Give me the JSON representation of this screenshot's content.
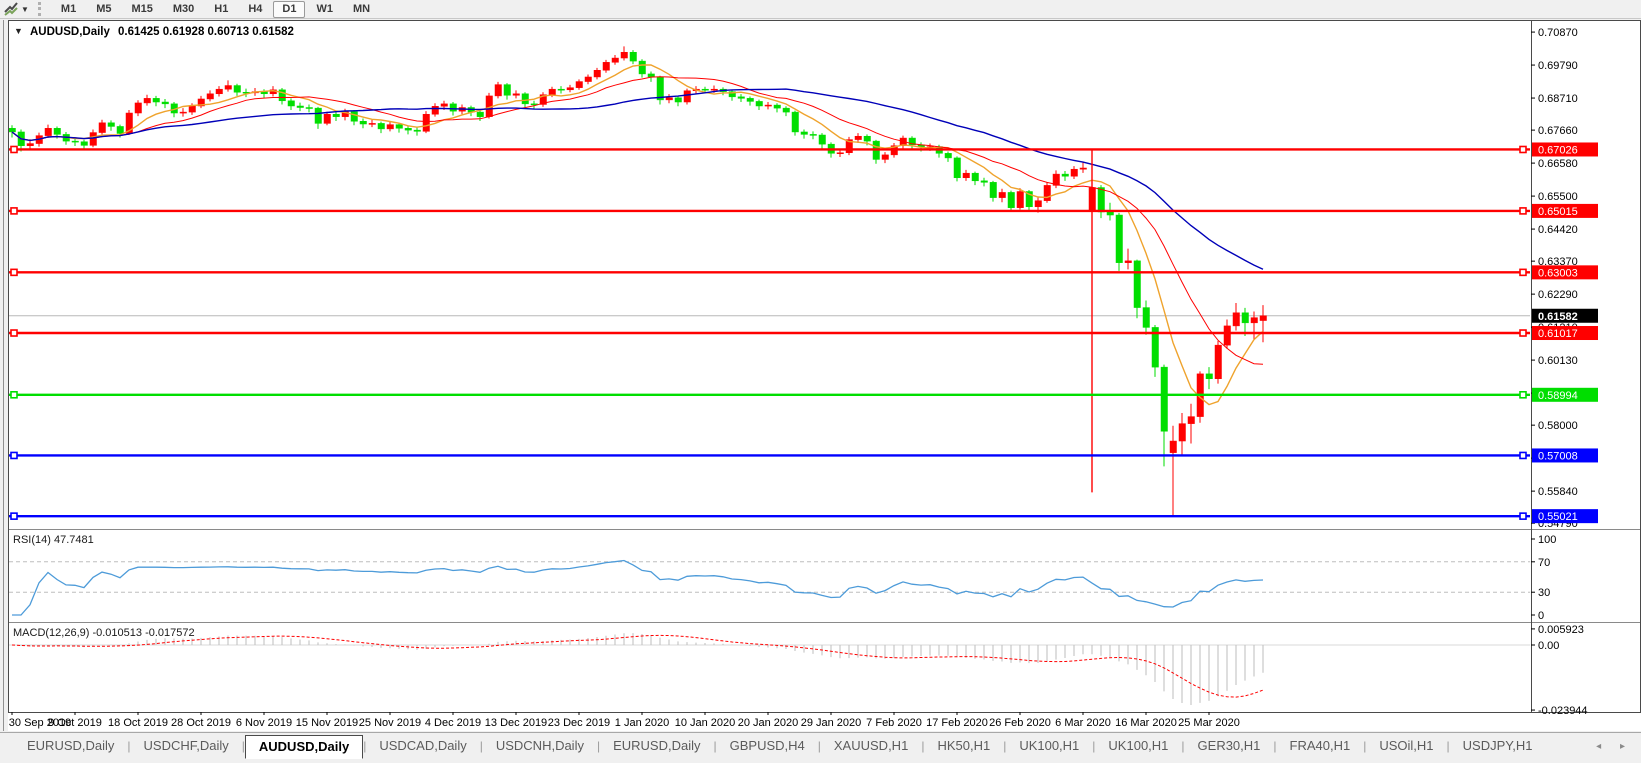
{
  "toolbar": {
    "chart_icon": "charts-toolbar-icon",
    "timeframes": [
      "M1",
      "M5",
      "M15",
      "M30",
      "H1",
      "H4",
      "D1",
      "W1",
      "MN"
    ],
    "active_timeframe": "D1"
  },
  "window_title": {
    "symbol_label": "AUDUSD,Daily",
    "ohlc_label": "0.61425 0.61928 0.60713 0.61582"
  },
  "tabs": {
    "items": [
      "EURUSD,Daily",
      "USDCHF,Daily",
      "AUDUSD,Daily",
      "USDCAD,Daily",
      "USDCNH,Daily",
      "EURUSD,Daily",
      "GBPUSD,H4",
      "XAUUSD,H1",
      "HK50,H1",
      "UK100,H1",
      "UK100,H1",
      "GER30,H1",
      "FRA40,H1",
      "USOil,H1",
      "USDJPY,H1"
    ],
    "active_index": 2,
    "left_arrow": "◂",
    "right_arrow": "▸"
  },
  "chart_data": {
    "type": "candlestick",
    "symbol": "AUDUSD",
    "timeframe": "Daily",
    "current_bar": {
      "open": 0.61425,
      "high": 0.61928,
      "low": 0.60713,
      "close": 0.61582
    },
    "current_price": 0.61582,
    "current_price_label": "0.61582",
    "price_range": {
      "top": 0.712,
      "bottom": 0.546
    },
    "y_ticks": [
      "0.70870",
      "0.69790",
      "0.68710",
      "0.67660",
      "0.66580",
      "0.65500",
      "0.64420",
      "0.63370",
      "0.62290",
      "0.61210",
      "0.60130",
      "0.59050",
      "0.58000",
      "0.56920",
      "0.55840",
      "0.54790"
    ],
    "x_labels": [
      "30 Sep 2019",
      "9 Oct 2019",
      "18 Oct 2019",
      "28 Oct 2019",
      "6 Nov 2019",
      "15 Nov 2019",
      "25 Nov 2019",
      "4 Dec 2019",
      "13 Dec 2019",
      "23 Dec 2019",
      "1 Jan 2020",
      "10 Jan 2020",
      "20 Jan 2020",
      "29 Jan 2020",
      "7 Feb 2020",
      "17 Feb 2020",
      "26 Feb 2020",
      "6 Mar 2020",
      "16 Mar 2020",
      "25 Mar 2020"
    ],
    "bars_per_label": 7,
    "colors": {
      "up_candle": "#FF0000",
      "down_candle": "#00DE00",
      "ma_fast": "#EFA32D",
      "ma_medium": "#FF0000",
      "ma_slow": "#0000B8",
      "current_price_line": "#B8B8B8",
      "current_price_bg": "#000000",
      "axis_text": "#000000",
      "background": "#FFFFFF",
      "border": "#4a4a4a"
    },
    "moving_averages": [
      {
        "name": "fast",
        "period": 7,
        "color": "#EFA32D"
      },
      {
        "name": "medium",
        "period": 14,
        "color": "#FF0000"
      },
      {
        "name": "slow",
        "period": 34,
        "color": "#0000B8"
      }
    ],
    "horizontal_lines": [
      {
        "price": 0.67026,
        "label": "0.67026",
        "color": "#FF0000"
      },
      {
        "price": 0.65015,
        "label": "0.65015",
        "color": "#FF0000"
      },
      {
        "price": 0.63003,
        "label": "0.63003",
        "color": "#FF0000"
      },
      {
        "price": 0.61017,
        "label": "0.61017",
        "color": "#FF0000"
      },
      {
        "price": 0.58994,
        "label": "0.58994",
        "color": "#00DE00"
      },
      {
        "price": 0.57008,
        "label": "0.57008",
        "color": "#0000FF"
      },
      {
        "price": 0.55021,
        "label": "0.55021",
        "color": "#0000FF"
      }
    ],
    "vertical_line": {
      "bar": 120,
      "color": "#FF0000",
      "from_price": 0.6705,
      "to_price": 0.558
    },
    "rsi": {
      "label": "RSI(14) 47.7481",
      "period": 14,
      "value": 47.7481,
      "scale_top": 100,
      "scale_bottom": 0,
      "levels": [
        70,
        30
      ],
      "y_ticks": [
        "100",
        "70",
        "30",
        "0"
      ],
      "color": "#4D9BD9",
      "level_color": "#BDBDBD"
    },
    "macd": {
      "label": "MACD(12,26,9) -0.010513 -0.017572",
      "fast": 12,
      "slow": 26,
      "signal_period": 9,
      "macd_value": -0.010513,
      "signal_value": -0.017572,
      "axis_max": 0.00662,
      "axis_min": -0.02468,
      "y_ticks": [
        {
          "v": 0.005923,
          "label": "0.005923"
        },
        {
          "v": 0.0,
          "label": "0.00"
        },
        {
          "v": -0.023944,
          "label": "-0.023944"
        }
      ],
      "hist_color": "#BEBEBE",
      "signal_color": "#FF0000"
    },
    "candles": [
      [
        0.6772,
        0.6782,
        0.6742,
        0.676
      ],
      [
        0.676,
        0.6768,
        0.6696,
        0.6715
      ],
      [
        0.6715,
        0.6736,
        0.6704,
        0.6722
      ],
      [
        0.6722,
        0.6758,
        0.6712,
        0.6748
      ],
      [
        0.6748,
        0.6784,
        0.674,
        0.6772
      ],
      [
        0.6772,
        0.6778,
        0.6738,
        0.6752
      ],
      [
        0.6752,
        0.676,
        0.6718,
        0.673
      ],
      [
        0.673,
        0.6742,
        0.6714,
        0.6728
      ],
      [
        0.6728,
        0.6734,
        0.6702,
        0.6716
      ],
      [
        0.6716,
        0.6768,
        0.671,
        0.6758
      ],
      [
        0.6758,
        0.68,
        0.6752,
        0.679
      ],
      [
        0.679,
        0.6798,
        0.6764,
        0.6778
      ],
      [
        0.6778,
        0.6784,
        0.6742,
        0.6755
      ],
      [
        0.6755,
        0.6832,
        0.675,
        0.6822
      ],
      [
        0.6822,
        0.6864,
        0.6812,
        0.6855
      ],
      [
        0.6855,
        0.6882,
        0.6846,
        0.687
      ],
      [
        0.687,
        0.6878,
        0.6844,
        0.6858
      ],
      [
        0.6858,
        0.6868,
        0.6838,
        0.6852
      ],
      [
        0.6852,
        0.6858,
        0.6808,
        0.6822
      ],
      [
        0.6822,
        0.6838,
        0.681,
        0.6825
      ],
      [
        0.6825,
        0.6854,
        0.6816,
        0.6845
      ],
      [
        0.6845,
        0.6878,
        0.6838,
        0.6868
      ],
      [
        0.6868,
        0.6896,
        0.686,
        0.6885
      ],
      [
        0.6885,
        0.691,
        0.6876,
        0.69
      ],
      [
        0.69,
        0.6929,
        0.6892,
        0.6912
      ],
      [
        0.6912,
        0.6918,
        0.6878,
        0.689
      ],
      [
        0.689,
        0.6902,
        0.6874,
        0.6888
      ],
      [
        0.6888,
        0.6904,
        0.6878,
        0.6892
      ],
      [
        0.6892,
        0.69,
        0.687,
        0.6885
      ],
      [
        0.6885,
        0.691,
        0.6876,
        0.6898
      ],
      [
        0.6898,
        0.6904,
        0.685,
        0.6862
      ],
      [
        0.6862,
        0.687,
        0.6832,
        0.6845
      ],
      [
        0.6845,
        0.6856,
        0.6828,
        0.684
      ],
      [
        0.684,
        0.685,
        0.6824,
        0.6838
      ],
      [
        0.6838,
        0.6842,
        0.677,
        0.6788
      ],
      [
        0.6788,
        0.6826,
        0.6782,
        0.6818
      ],
      [
        0.6818,
        0.6828,
        0.6796,
        0.681
      ],
      [
        0.681,
        0.6836,
        0.6798,
        0.6826
      ],
      [
        0.6826,
        0.6832,
        0.6782,
        0.6795
      ],
      [
        0.6795,
        0.6804,
        0.6772,
        0.6786
      ],
      [
        0.6786,
        0.68,
        0.6776,
        0.6788
      ],
      [
        0.6788,
        0.6794,
        0.6756,
        0.677
      ],
      [
        0.677,
        0.6794,
        0.6762,
        0.6784
      ],
      [
        0.6784,
        0.679,
        0.6758,
        0.6772
      ],
      [
        0.6772,
        0.678,
        0.6752,
        0.6766
      ],
      [
        0.6766,
        0.6776,
        0.6748,
        0.6762
      ],
      [
        0.6762,
        0.6828,
        0.6756,
        0.6818
      ],
      [
        0.6818,
        0.6854,
        0.681,
        0.6844
      ],
      [
        0.6844,
        0.6862,
        0.6832,
        0.6852
      ],
      [
        0.6852,
        0.6858,
        0.6814,
        0.6828
      ],
      [
        0.6828,
        0.685,
        0.6818,
        0.684
      ],
      [
        0.684,
        0.6846,
        0.6812,
        0.6825
      ],
      [
        0.6825,
        0.6832,
        0.6796,
        0.681
      ],
      [
        0.681,
        0.6888,
        0.6804,
        0.6878
      ],
      [
        0.6878,
        0.6924,
        0.687,
        0.6915
      ],
      [
        0.6915,
        0.692,
        0.6866,
        0.688
      ],
      [
        0.688,
        0.6896,
        0.687,
        0.6885
      ],
      [
        0.6885,
        0.689,
        0.6838,
        0.6852
      ],
      [
        0.6852,
        0.6862,
        0.6836,
        0.685
      ],
      [
        0.685,
        0.689,
        0.6842,
        0.6882
      ],
      [
        0.6882,
        0.6908,
        0.6874,
        0.69
      ],
      [
        0.69,
        0.691,
        0.6886,
        0.6898
      ],
      [
        0.6898,
        0.6914,
        0.689,
        0.6905
      ],
      [
        0.6905,
        0.6932,
        0.6898,
        0.6925
      ],
      [
        0.6925,
        0.6948,
        0.6916,
        0.694
      ],
      [
        0.694,
        0.697,
        0.6932,
        0.6962
      ],
      [
        0.6962,
        0.6996,
        0.6954,
        0.6988
      ],
      [
        0.6988,
        0.7012,
        0.698,
        0.7002
      ],
      [
        0.7002,
        0.704,
        0.6994,
        0.7021
      ],
      [
        0.7021,
        0.7028,
        0.6982,
        0.6992
      ],
      [
        0.6992,
        0.6998,
        0.6938,
        0.695
      ],
      [
        0.695,
        0.6958,
        0.6924,
        0.694
      ],
      [
        0.694,
        0.6944,
        0.685,
        0.6865
      ],
      [
        0.6865,
        0.6884,
        0.6854,
        0.6872
      ],
      [
        0.6872,
        0.6878,
        0.6844,
        0.6858
      ],
      [
        0.6858,
        0.6902,
        0.685,
        0.6895
      ],
      [
        0.6895,
        0.691,
        0.6884,
        0.69
      ],
      [
        0.69,
        0.6908,
        0.6886,
        0.6898
      ],
      [
        0.6898,
        0.6912,
        0.6888,
        0.69
      ],
      [
        0.69,
        0.6906,
        0.688,
        0.6892
      ],
      [
        0.6892,
        0.6898,
        0.6862,
        0.6875
      ],
      [
        0.6875,
        0.6884,
        0.6858,
        0.687
      ],
      [
        0.687,
        0.6876,
        0.6846,
        0.686
      ],
      [
        0.686,
        0.6866,
        0.6832,
        0.6845
      ],
      [
        0.6845,
        0.6858,
        0.6834,
        0.6848
      ],
      [
        0.6848,
        0.6854,
        0.6824,
        0.6838
      ],
      [
        0.6838,
        0.6844,
        0.6812,
        0.6825
      ],
      [
        0.6825,
        0.683,
        0.6748,
        0.676
      ],
      [
        0.676,
        0.6768,
        0.6738,
        0.6752
      ],
      [
        0.6752,
        0.6762,
        0.6736,
        0.675
      ],
      [
        0.675,
        0.6756,
        0.6706,
        0.672
      ],
      [
        0.672,
        0.6726,
        0.6676,
        0.669
      ],
      [
        0.669,
        0.6702,
        0.6678,
        0.6692
      ],
      [
        0.6692,
        0.6744,
        0.6684,
        0.6735
      ],
      [
        0.6735,
        0.6756,
        0.6724,
        0.6746
      ],
      [
        0.6746,
        0.6752,
        0.6716,
        0.673
      ],
      [
        0.673,
        0.6734,
        0.6656,
        0.667
      ],
      [
        0.667,
        0.6694,
        0.6658,
        0.6685
      ],
      [
        0.6685,
        0.6724,
        0.6676,
        0.6715
      ],
      [
        0.6715,
        0.6748,
        0.6706,
        0.674
      ],
      [
        0.674,
        0.6746,
        0.6704,
        0.6718
      ],
      [
        0.6718,
        0.6726,
        0.6696,
        0.671
      ],
      [
        0.671,
        0.6722,
        0.6698,
        0.6712
      ],
      [
        0.6712,
        0.6718,
        0.6676,
        0.669
      ],
      [
        0.669,
        0.6696,
        0.6662,
        0.6675
      ],
      [
        0.6675,
        0.668,
        0.6598,
        0.661
      ],
      [
        0.661,
        0.6636,
        0.66,
        0.6625
      ],
      [
        0.6625,
        0.663,
        0.6586,
        0.66
      ],
      [
        0.66,
        0.661,
        0.6582,
        0.6595
      ],
      [
        0.6595,
        0.66,
        0.6532,
        0.6545
      ],
      [
        0.6545,
        0.6574,
        0.653,
        0.6562
      ],
      [
        0.6562,
        0.6568,
        0.6498,
        0.6512
      ],
      [
        0.6512,
        0.6576,
        0.6506,
        0.6565
      ],
      [
        0.6565,
        0.657,
        0.6502,
        0.6515
      ],
      [
        0.6515,
        0.6548,
        0.6496,
        0.6535
      ],
      [
        0.6535,
        0.6596,
        0.6528,
        0.6585
      ],
      [
        0.6585,
        0.6634,
        0.6576,
        0.6622
      ],
      [
        0.6622,
        0.6632,
        0.66,
        0.6615
      ],
      [
        0.6615,
        0.6648,
        0.6606,
        0.6638
      ],
      [
        0.6638,
        0.6662,
        0.6626,
        0.6642
      ],
      [
        0.65,
        0.6655,
        0.6312,
        0.6578
      ],
      [
        0.6578,
        0.6586,
        0.6478,
        0.6498
      ],
      [
        0.6498,
        0.6528,
        0.647,
        0.6488
      ],
      [
        0.6488,
        0.6495,
        0.6305,
        0.6332
      ],
      [
        0.6332,
        0.6378,
        0.631,
        0.6338
      ],
      [
        0.6338,
        0.6342,
        0.615,
        0.6185
      ],
      [
        0.6185,
        0.6208,
        0.6096,
        0.612
      ],
      [
        0.612,
        0.6128,
        0.5958,
        0.599
      ],
      [
        0.599,
        0.5998,
        0.5665,
        0.578
      ],
      [
        0.571,
        0.5798,
        0.5506,
        0.5748
      ],
      [
        0.5748,
        0.584,
        0.57,
        0.5805
      ],
      [
        0.5805,
        0.587,
        0.574,
        0.5828
      ],
      [
        0.5828,
        0.5976,
        0.5808,
        0.5968
      ],
      [
        0.5968,
        0.599,
        0.5918,
        0.5952
      ],
      [
        0.5952,
        0.6076,
        0.5936,
        0.6062
      ],
      [
        0.6062,
        0.6146,
        0.605,
        0.6125
      ],
      [
        0.6125,
        0.62,
        0.611,
        0.6168
      ],
      [
        0.6168,
        0.6184,
        0.6092,
        0.6135
      ],
      [
        0.6135,
        0.6172,
        0.6082,
        0.6152
      ],
      [
        0.61425,
        0.61928,
        0.60713,
        0.61582
      ]
    ]
  }
}
